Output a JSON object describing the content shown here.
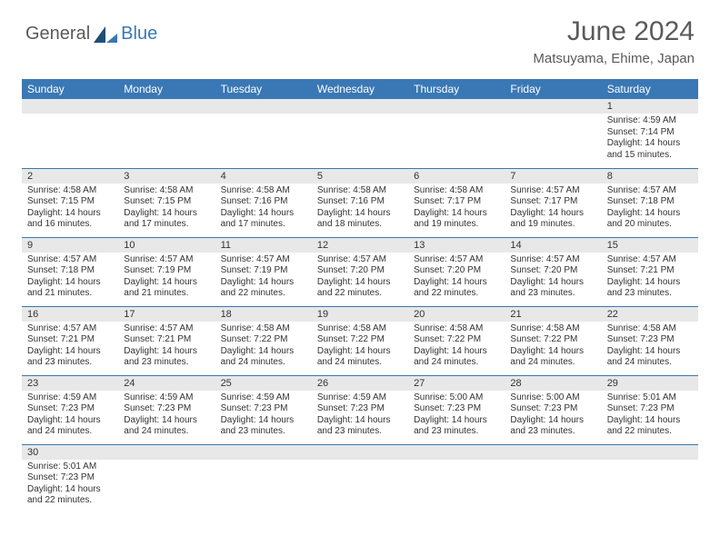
{
  "logo": {
    "text1": "General",
    "text2": "Blue"
  },
  "header": {
    "title": "June 2024",
    "location": "Matsuyama, Ehime, Japan"
  },
  "calendar": {
    "header_bg": "#3a78b5",
    "header_text_color": "#ffffff",
    "daynum_bg": "#e8e8e8",
    "border_color": "#3a78b5",
    "day_headers": [
      "Sunday",
      "Monday",
      "Tuesday",
      "Wednesday",
      "Thursday",
      "Friday",
      "Saturday"
    ],
    "weeks": [
      [
        null,
        null,
        null,
        null,
        null,
        null,
        {
          "d": "1",
          "sr": "Sunrise: 4:59 AM",
          "ss": "Sunset: 7:14 PM",
          "dl": "Daylight: 14 hours and 15 minutes."
        }
      ],
      [
        {
          "d": "2",
          "sr": "Sunrise: 4:58 AM",
          "ss": "Sunset: 7:15 PM",
          "dl": "Daylight: 14 hours and 16 minutes."
        },
        {
          "d": "3",
          "sr": "Sunrise: 4:58 AM",
          "ss": "Sunset: 7:15 PM",
          "dl": "Daylight: 14 hours and 17 minutes."
        },
        {
          "d": "4",
          "sr": "Sunrise: 4:58 AM",
          "ss": "Sunset: 7:16 PM",
          "dl": "Daylight: 14 hours and 17 minutes."
        },
        {
          "d": "5",
          "sr": "Sunrise: 4:58 AM",
          "ss": "Sunset: 7:16 PM",
          "dl": "Daylight: 14 hours and 18 minutes."
        },
        {
          "d": "6",
          "sr": "Sunrise: 4:58 AM",
          "ss": "Sunset: 7:17 PM",
          "dl": "Daylight: 14 hours and 19 minutes."
        },
        {
          "d": "7",
          "sr": "Sunrise: 4:57 AM",
          "ss": "Sunset: 7:17 PM",
          "dl": "Daylight: 14 hours and 19 minutes."
        },
        {
          "d": "8",
          "sr": "Sunrise: 4:57 AM",
          "ss": "Sunset: 7:18 PM",
          "dl": "Daylight: 14 hours and 20 minutes."
        }
      ],
      [
        {
          "d": "9",
          "sr": "Sunrise: 4:57 AM",
          "ss": "Sunset: 7:18 PM",
          "dl": "Daylight: 14 hours and 21 minutes."
        },
        {
          "d": "10",
          "sr": "Sunrise: 4:57 AM",
          "ss": "Sunset: 7:19 PM",
          "dl": "Daylight: 14 hours and 21 minutes."
        },
        {
          "d": "11",
          "sr": "Sunrise: 4:57 AM",
          "ss": "Sunset: 7:19 PM",
          "dl": "Daylight: 14 hours and 22 minutes."
        },
        {
          "d": "12",
          "sr": "Sunrise: 4:57 AM",
          "ss": "Sunset: 7:20 PM",
          "dl": "Daylight: 14 hours and 22 minutes."
        },
        {
          "d": "13",
          "sr": "Sunrise: 4:57 AM",
          "ss": "Sunset: 7:20 PM",
          "dl": "Daylight: 14 hours and 22 minutes."
        },
        {
          "d": "14",
          "sr": "Sunrise: 4:57 AM",
          "ss": "Sunset: 7:20 PM",
          "dl": "Daylight: 14 hours and 23 minutes."
        },
        {
          "d": "15",
          "sr": "Sunrise: 4:57 AM",
          "ss": "Sunset: 7:21 PM",
          "dl": "Daylight: 14 hours and 23 minutes."
        }
      ],
      [
        {
          "d": "16",
          "sr": "Sunrise: 4:57 AM",
          "ss": "Sunset: 7:21 PM",
          "dl": "Daylight: 14 hours and 23 minutes."
        },
        {
          "d": "17",
          "sr": "Sunrise: 4:57 AM",
          "ss": "Sunset: 7:21 PM",
          "dl": "Daylight: 14 hours and 23 minutes."
        },
        {
          "d": "18",
          "sr": "Sunrise: 4:58 AM",
          "ss": "Sunset: 7:22 PM",
          "dl": "Daylight: 14 hours and 24 minutes."
        },
        {
          "d": "19",
          "sr": "Sunrise: 4:58 AM",
          "ss": "Sunset: 7:22 PM",
          "dl": "Daylight: 14 hours and 24 minutes."
        },
        {
          "d": "20",
          "sr": "Sunrise: 4:58 AM",
          "ss": "Sunset: 7:22 PM",
          "dl": "Daylight: 14 hours and 24 minutes."
        },
        {
          "d": "21",
          "sr": "Sunrise: 4:58 AM",
          "ss": "Sunset: 7:22 PM",
          "dl": "Daylight: 14 hours and 24 minutes."
        },
        {
          "d": "22",
          "sr": "Sunrise: 4:58 AM",
          "ss": "Sunset: 7:23 PM",
          "dl": "Daylight: 14 hours and 24 minutes."
        }
      ],
      [
        {
          "d": "23",
          "sr": "Sunrise: 4:59 AM",
          "ss": "Sunset: 7:23 PM",
          "dl": "Daylight: 14 hours and 24 minutes."
        },
        {
          "d": "24",
          "sr": "Sunrise: 4:59 AM",
          "ss": "Sunset: 7:23 PM",
          "dl": "Daylight: 14 hours and 24 minutes."
        },
        {
          "d": "25",
          "sr": "Sunrise: 4:59 AM",
          "ss": "Sunset: 7:23 PM",
          "dl": "Daylight: 14 hours and 23 minutes."
        },
        {
          "d": "26",
          "sr": "Sunrise: 4:59 AM",
          "ss": "Sunset: 7:23 PM",
          "dl": "Daylight: 14 hours and 23 minutes."
        },
        {
          "d": "27",
          "sr": "Sunrise: 5:00 AM",
          "ss": "Sunset: 7:23 PM",
          "dl": "Daylight: 14 hours and 23 minutes."
        },
        {
          "d": "28",
          "sr": "Sunrise: 5:00 AM",
          "ss": "Sunset: 7:23 PM",
          "dl": "Daylight: 14 hours and 23 minutes."
        },
        {
          "d": "29",
          "sr": "Sunrise: 5:01 AM",
          "ss": "Sunset: 7:23 PM",
          "dl": "Daylight: 14 hours and 22 minutes."
        }
      ],
      [
        {
          "d": "30",
          "sr": "Sunrise: 5:01 AM",
          "ss": "Sunset: 7:23 PM",
          "dl": "Daylight: 14 hours and 22 minutes."
        },
        null,
        null,
        null,
        null,
        null,
        null
      ]
    ]
  }
}
